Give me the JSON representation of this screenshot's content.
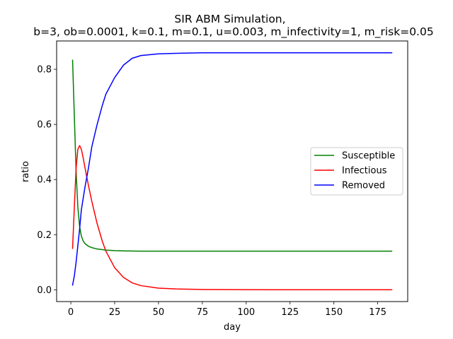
{
  "chart_data": {
    "type": "line",
    "title": "SIR ABM Simulation,",
    "subtitle": "b=3, ob=0.0001, k=0.1, m=0.1, u=0.003, m_infectivity=1, m_risk=0.05",
    "xlabel": "day",
    "ylabel": "ratio",
    "xlim": [
      -8.1,
      192.1
    ],
    "ylim": [
      -0.0428,
      0.9028
    ],
    "xticks": [
      0,
      25,
      50,
      75,
      100,
      125,
      150,
      175
    ],
    "yticks": [
      0.0,
      0.2,
      0.4,
      0.6,
      0.8
    ],
    "xtick_labels": [
      "0",
      "25",
      "50",
      "75",
      "100",
      "125",
      "150",
      "175"
    ],
    "ytick_labels": [
      "0.0",
      "0.2",
      "0.4",
      "0.6",
      "0.8"
    ],
    "grid": false,
    "legend_position": "center-right",
    "series": [
      {
        "name": "Susceptible",
        "color": "#008000",
        "x": [
          1,
          2,
          3,
          4,
          5,
          6,
          7,
          8,
          10,
          12,
          15,
          20,
          25,
          30,
          40,
          60,
          80,
          100,
          150,
          183
        ],
        "y": [
          0.833,
          0.63,
          0.43,
          0.3,
          0.23,
          0.195,
          0.178,
          0.168,
          0.158,
          0.153,
          0.148,
          0.144,
          0.142,
          0.141,
          0.14,
          0.14,
          0.14,
          0.14,
          0.14,
          0.14
        ]
      },
      {
        "name": "Infectious",
        "color": "#ff0000",
        "x": [
          1,
          2,
          3,
          4,
          5,
          6,
          7,
          8,
          10,
          12,
          15,
          18,
          20,
          25,
          30,
          35,
          40,
          50,
          60,
          75,
          100,
          150,
          183
        ],
        "y": [
          0.15,
          0.3,
          0.44,
          0.51,
          0.523,
          0.51,
          0.48,
          0.445,
          0.38,
          0.32,
          0.24,
          0.175,
          0.14,
          0.08,
          0.045,
          0.025,
          0.015,
          0.006,
          0.003,
          0.001,
          0.0003,
          0.0001,
          0.0
        ]
      },
      {
        "name": "Removed",
        "color": "#0000ff",
        "x": [
          1,
          2,
          3,
          4,
          5,
          6,
          8,
          10,
          12,
          15,
          18,
          20,
          25,
          30,
          35,
          40,
          50,
          60,
          75,
          100,
          150,
          183
        ],
        "y": [
          0.017,
          0.05,
          0.1,
          0.16,
          0.22,
          0.29,
          0.37,
          0.44,
          0.52,
          0.6,
          0.67,
          0.71,
          0.77,
          0.815,
          0.84,
          0.85,
          0.856,
          0.858,
          0.86,
          0.86,
          0.86,
          0.86
        ]
      }
    ]
  }
}
